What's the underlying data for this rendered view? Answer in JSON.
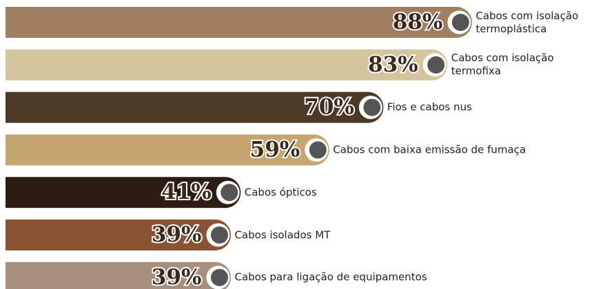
{
  "chart_data": {
    "type": "bar",
    "categories": [
      "Cabos com isolação termoplástica",
      "Cabos com isolação termofixa",
      "Fios e cabos nus",
      "Cabos com baixa emissão de fumaça",
      "Cabos ópticos",
      "Cabos isolados MT",
      "Cabos para ligação de equipamentos"
    ],
    "values": [
      88,
      83,
      70,
      59,
      41,
      39,
      39
    ],
    "value_labels": [
      "88%",
      "83%",
      "70%",
      "59%",
      "41%",
      "39%",
      "39%"
    ],
    "colors": [
      "#9f7f5f",
      "#d4c59f",
      "#4d3927",
      "#c5a671",
      "#2d1c11",
      "#8a5434",
      "#a88f7e"
    ]
  }
}
